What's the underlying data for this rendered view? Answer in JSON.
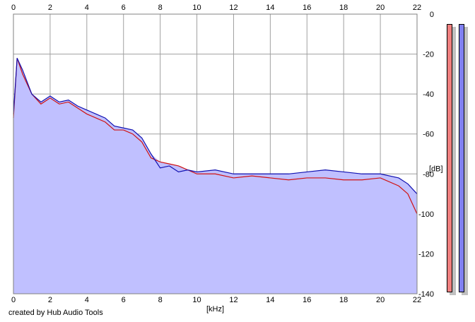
{
  "chart_data": {
    "type": "area",
    "x_ticks": [
      0,
      2,
      4,
      6,
      8,
      10,
      12,
      14,
      16,
      18,
      20,
      22
    ],
    "y_ticks": [
      0,
      -20,
      -40,
      -60,
      -80,
      -100,
      -120,
      -140
    ],
    "xlim": [
      0,
      22
    ],
    "ylim": [
      -140,
      0
    ],
    "xlabel": "[kHz]",
    "ylabel": "[dB]",
    "grid": true,
    "series": [
      {
        "color": "#d01010",
        "x": [
          0,
          0.2,
          0.5,
          1,
          1.5,
          2,
          2.5,
          3,
          3.5,
          4,
          4.5,
          5,
          5.5,
          6,
          6.5,
          7,
          7.5,
          8,
          8.5,
          9,
          9.5,
          10,
          11,
          12,
          13,
          14,
          15,
          16,
          17,
          18,
          19,
          20,
          21,
          21.5,
          22
        ],
        "y": [
          -52,
          -22,
          -30,
          -40,
          -45,
          -42,
          -45,
          -44,
          -47,
          -50,
          -52,
          -54,
          -58,
          -58,
          -60,
          -64,
          -72,
          -74,
          -75,
          -76,
          -78,
          -80,
          -80,
          -82,
          -81,
          -82,
          -83,
          -82,
          -82,
          -83,
          -83,
          -82,
          -86,
          -90,
          -100
        ]
      },
      {
        "color": "#1010b0",
        "x": [
          0,
          0.2,
          0.5,
          1,
          1.5,
          2,
          2.5,
          3,
          3.5,
          4,
          4.5,
          5,
          5.5,
          6,
          6.5,
          7,
          7.5,
          8,
          8.5,
          9,
          9.5,
          10,
          11,
          12,
          13,
          14,
          15,
          16,
          17,
          18,
          19,
          20,
          21,
          21.5,
          22
        ],
        "y": [
          -50,
          -22,
          -28,
          -40,
          -44,
          -41,
          -44,
          -43,
          -46,
          -48,
          -50,
          -52,
          -56,
          -57,
          -58,
          -62,
          -70,
          -77,
          -76,
          -79,
          -78,
          -79,
          -78,
          -80,
          -80,
          -80,
          -80,
          -79,
          -78,
          -79,
          -80,
          -80,
          -82,
          -85,
          -90
        ]
      }
    ],
    "fill_color": "#c0c0ff"
  },
  "meters": [
    {
      "color": "#f08080"
    },
    {
      "color": "#8080f0"
    }
  ],
  "credit": "created by Hub Audio Tools"
}
